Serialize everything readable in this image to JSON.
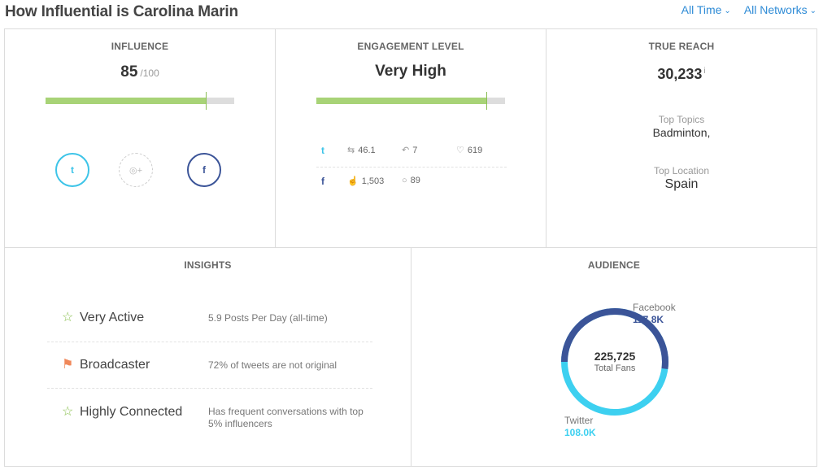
{
  "header": {
    "title": "How Influential is Carolina Marin",
    "filters": [
      {
        "label": "All Time"
      },
      {
        "label": "All Networks"
      }
    ]
  },
  "influence": {
    "title": "INFLUENCE",
    "score": "85",
    "max": "/100",
    "score_fraction": 0.85,
    "networks": [
      {
        "name": "twitter-icon",
        "glyph": "t",
        "color": "#3dc4e8",
        "active": true
      },
      {
        "name": "instagram-icon",
        "glyph": "◎+",
        "color": "#bbbbbb",
        "active": false
      },
      {
        "name": "facebook-icon",
        "glyph": "f",
        "color": "#3b5498",
        "active": true
      }
    ]
  },
  "engagement": {
    "title": "ENGAGEMENT LEVEL",
    "level": "Very High",
    "level_fraction": 0.9,
    "twitter": {
      "retweets": "46.1",
      "replies": "7",
      "likes": "619"
    },
    "facebook": {
      "likes": "1,503",
      "comments": "89"
    }
  },
  "reach": {
    "title": "TRUE REACH",
    "value": "30,233",
    "info": "i",
    "top_topics_label": "Top Topics",
    "top_topics": "Badminton,",
    "top_location_label": "Top Location",
    "top_location": "Spain"
  },
  "insights": {
    "title": "INSIGHTS",
    "items": [
      {
        "name": "Very Active",
        "desc": "5.9 Posts Per Day (all-time)",
        "icon": "star-outline-icon"
      },
      {
        "name": "Broadcaster",
        "desc": "72% of tweets are not original",
        "icon": "flag-icon"
      },
      {
        "name": "Highly Connected",
        "desc": "Has frequent conversations with top 5% influencers",
        "icon": "star-outline-icon"
      }
    ]
  },
  "audience": {
    "title": "AUDIENCE",
    "total": "225,725",
    "total_label": "Total Fans",
    "facebook_label": "Facebook",
    "facebook_value": "117.8K",
    "facebook_fans": 117.8,
    "twitter_label": "Twitter",
    "twitter_value": "108.0K",
    "twitter_fans": 108.0,
    "colors": {
      "facebook": "#3b5498",
      "twitter": "#3dd0f0"
    }
  }
}
